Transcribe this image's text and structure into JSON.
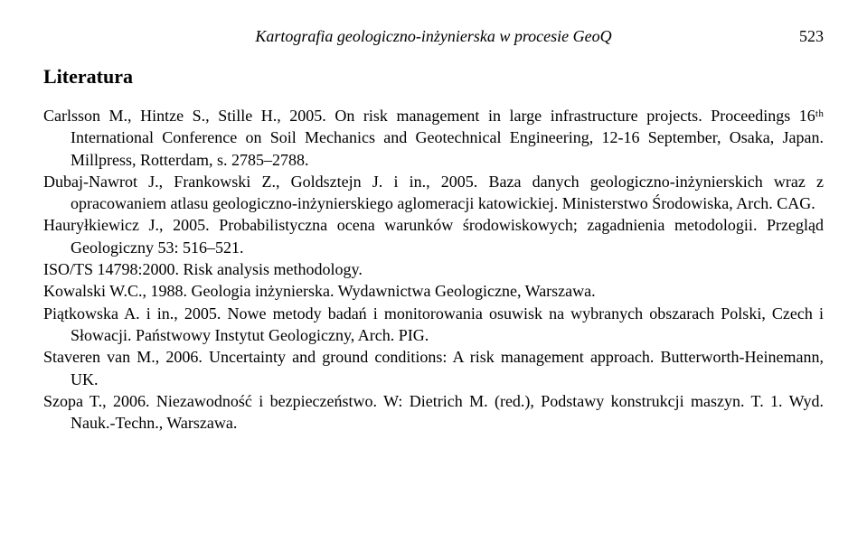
{
  "running_head": {
    "title": "Kartografia geologiczno-inżynierska w procesie GeoQ",
    "page_number": "523"
  },
  "section_heading": "Literatura",
  "references": [
    "Carlsson M., Hintze S., Stille H., 2005. On risk management in large infrastructure projects. Proceedings 16ᵗʰ International Conference on Soil Mechanics and Geotechnical Engineering, 12-16 September, Osaka, Japan. Millpress, Rotterdam, s. 2785–2788.",
    "Dubaj-Nawrot J., Frankowski Z., Goldsztejn J. i in., 2005. Baza danych geologiczno-inżynierskich wraz z opracowaniem atlasu geologiczno-inżynierskiego aglomeracji katowickiej. Ministerstwo Środowiska, Arch. CAG.",
    "Hauryłkiewicz J., 2005. Probabilistyczna ocena warunków środowiskowych; zagadnienia metodologii. Przegląd Geologiczny 53: 516–521.",
    "ISO/TS 14798:2000. Risk analysis methodology.",
    "Kowalski W.C., 1988. Geologia inżynierska. Wydawnictwa Geologiczne, Warszawa.",
    "Piątkowska A. i in., 2005. Nowe metody badań i monitorowania osuwisk na wybranych obszarach Polski, Czech i Słowacji. Państwowy Instytut Geologiczny, Arch. PIG.",
    "Staveren van M., 2006. Uncertainty and ground conditions: A risk management approach. Butterworth-Heinemann, UK.",
    "Szopa T., 2006. Niezawodność i bezpieczeństwo. W: Dietrich M. (red.), Podstawy konstrukcji maszyn. T. 1. Wyd. Nauk.-Techn., Warszawa."
  ]
}
